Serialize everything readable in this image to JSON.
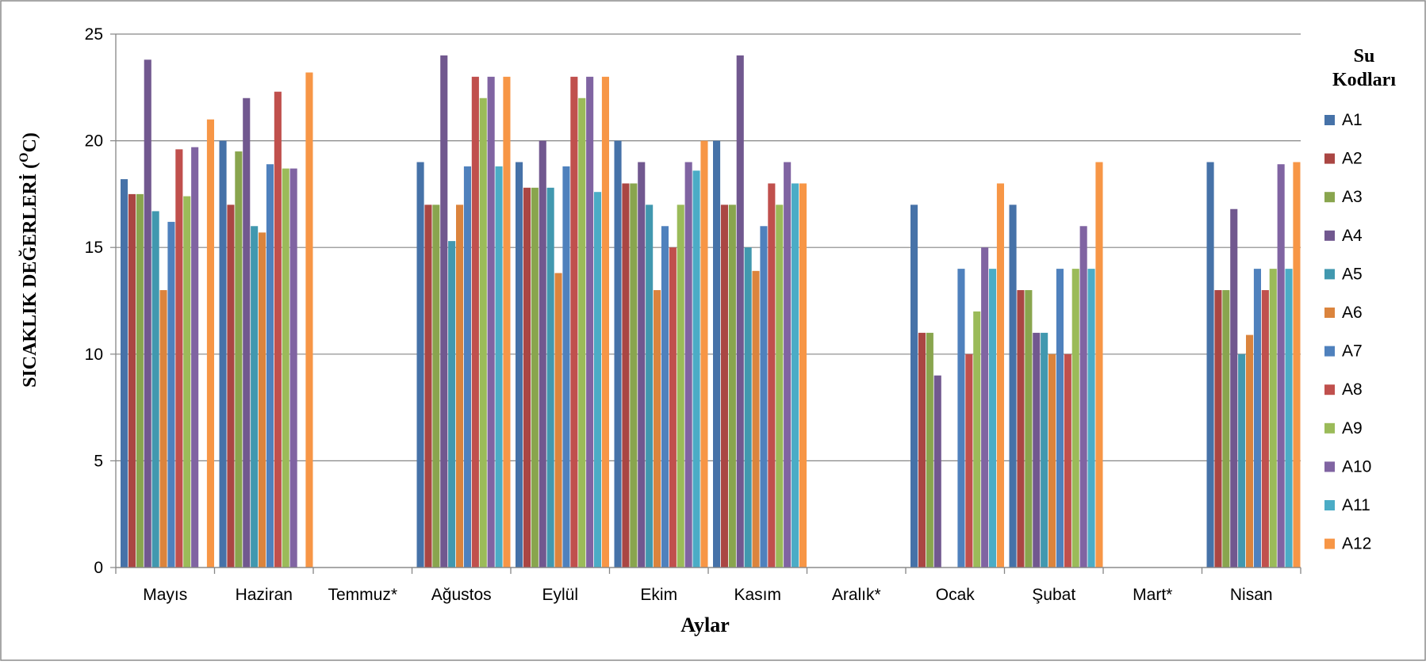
{
  "chart_data": {
    "type": "bar",
    "title": "",
    "xlabel": "Aylar",
    "ylabel": "SICAKLIK  DEĞERLERİ (",
    "ylabel_sup": "O",
    "ylabel_tail": "C)",
    "legend_title_line1": "Su",
    "legend_title_line2": "Kodları",
    "legend_position": "right",
    "grid": true,
    "ylim": [
      0,
      25
    ],
    "yticks": [
      0,
      5,
      10,
      15,
      20,
      25
    ],
    "categories": [
      "Mayıs",
      "Haziran",
      "Temmuz*",
      "Ağustos",
      "Eylül",
      "Ekim",
      "Kasım",
      "Aralık*",
      "Ocak",
      "Şubat",
      "Mart*",
      "Nisan"
    ],
    "series": [
      {
        "name": "A1",
        "color": "#4672A8",
        "values": [
          18.2,
          20,
          null,
          19,
          19,
          20,
          20,
          null,
          17,
          17,
          null,
          19
        ]
      },
      {
        "name": "A2",
        "color": "#AA4643",
        "values": [
          17.5,
          17,
          null,
          17,
          17.8,
          18,
          17,
          null,
          11,
          13,
          null,
          13
        ]
      },
      {
        "name": "A3",
        "color": "#89A54E",
        "values": [
          17.5,
          19.5,
          null,
          17,
          17.8,
          18,
          17,
          null,
          11,
          13,
          null,
          13
        ]
      },
      {
        "name": "A4",
        "color": "#71588F",
        "values": [
          23.8,
          22,
          null,
          24,
          20,
          19,
          24,
          null,
          9,
          11,
          null,
          16.8
        ]
      },
      {
        "name": "A5",
        "color": "#4198AF",
        "values": [
          16.7,
          16,
          null,
          15.3,
          17.8,
          17,
          15,
          null,
          null,
          11,
          null,
          10
        ]
      },
      {
        "name": "A6",
        "color": "#DB843D",
        "values": [
          13,
          15.7,
          null,
          17,
          13.8,
          13,
          13.9,
          null,
          null,
          10,
          null,
          10.9
        ]
      },
      {
        "name": "A7",
        "color": "#4F81BD",
        "values": [
          16.2,
          18.9,
          null,
          18.8,
          18.8,
          16,
          16,
          null,
          14,
          14,
          null,
          14
        ]
      },
      {
        "name": "A8",
        "color": "#C0504D",
        "values": [
          19.6,
          22.3,
          null,
          23,
          23,
          15,
          18,
          null,
          10,
          10,
          null,
          13
        ]
      },
      {
        "name": "A9",
        "color": "#9BBB59",
        "values": [
          17.4,
          18.7,
          null,
          22,
          22,
          17,
          17,
          null,
          12,
          14,
          null,
          14
        ]
      },
      {
        "name": "A10",
        "color": "#8064A2",
        "values": [
          19.7,
          18.7,
          null,
          23,
          23,
          19,
          19,
          null,
          15,
          16,
          null,
          18.9
        ]
      },
      {
        "name": "A11",
        "color": "#4BACC6",
        "values": [
          null,
          null,
          null,
          18.8,
          17.6,
          18.6,
          18,
          null,
          14,
          14,
          null,
          14
        ]
      },
      {
        "name": "A12",
        "color": "#F79646",
        "values": [
          21,
          23.2,
          null,
          23,
          23,
          20,
          18,
          null,
          18,
          19,
          null,
          19
        ]
      }
    ]
  }
}
